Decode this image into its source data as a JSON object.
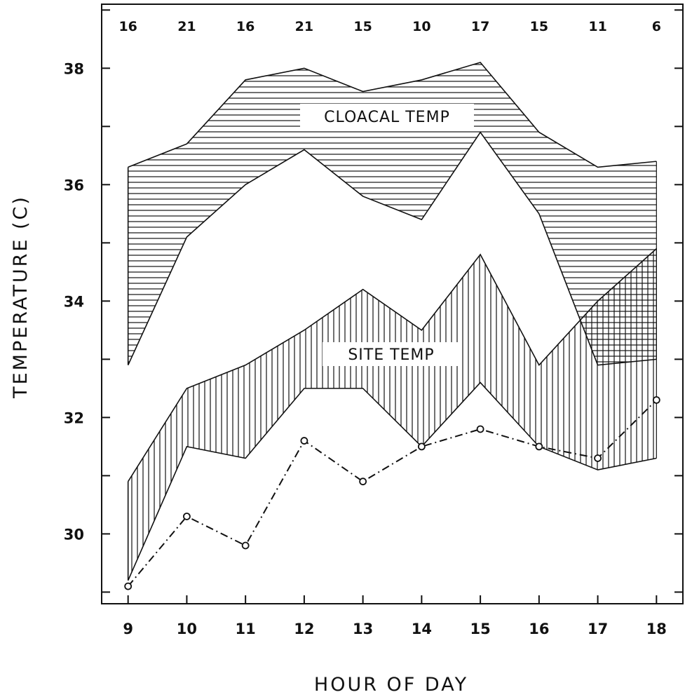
{
  "chart_data": {
    "type": "area",
    "xlabel": "HOUR OF DAY",
    "ylabel": "TEMPERATURE (C)",
    "x": [
      9,
      10,
      11,
      12,
      13,
      14,
      15,
      16,
      17,
      18
    ],
    "x_tick_labels": [
      "9",
      "10",
      "11",
      "12",
      "13",
      "14",
      "15",
      "16",
      "17",
      "18"
    ],
    "y_ticks": [
      30,
      32,
      34,
      36,
      38
    ],
    "y_tick_labels": [
      "30",
      "32",
      "34",
      "36",
      "38"
    ],
    "ylim": [
      28.8,
      39.1
    ],
    "xlim": [
      8.55,
      18.45
    ],
    "sample_sizes": [
      "16",
      "21",
      "16",
      "21",
      "15",
      "10",
      "17",
      "15",
      "11",
      "6"
    ],
    "series": [
      {
        "name": "CLOACAL TEMP",
        "style": "horizontal-hatch",
        "upper": [
          36.3,
          36.7,
          37.8,
          38.0,
          37.6,
          37.8,
          38.1,
          36.9,
          36.3,
          36.4
        ],
        "lower": [
          32.9,
          35.1,
          36.0,
          36.6,
          35.8,
          35.4,
          36.9,
          35.5,
          32.9,
          33.0
        ]
      },
      {
        "name": "SITE TEMP",
        "style": "vertical-hatch",
        "upper": [
          30.9,
          32.5,
          32.9,
          33.5,
          34.2,
          33.5,
          34.8,
          32.9,
          34.0,
          34.9
        ],
        "lower": [
          29.2,
          31.5,
          31.3,
          32.5,
          32.5,
          31.5,
          32.6,
          31.5,
          31.1,
          31.3
        ]
      },
      {
        "style": "dash-dot-circles",
        "values": [
          29.1,
          30.3,
          29.8,
          31.6,
          30.9,
          31.5,
          31.8,
          31.5,
          31.3,
          32.3
        ]
      }
    ],
    "grid": false,
    "legend": "none"
  }
}
